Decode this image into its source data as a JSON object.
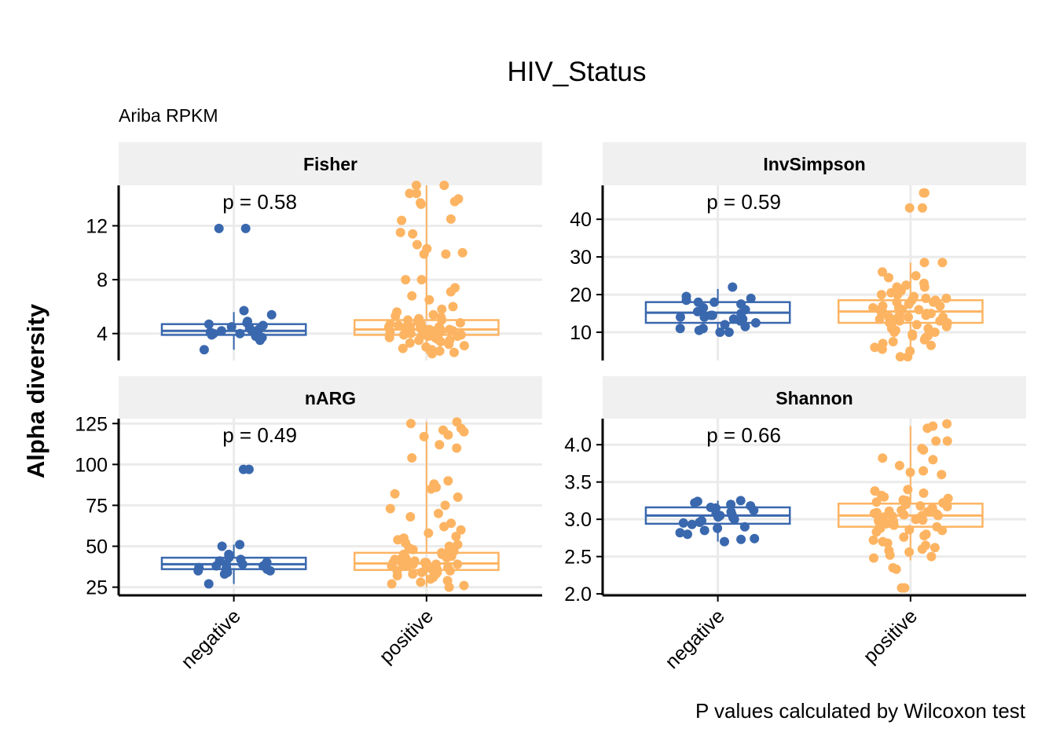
{
  "chart": {
    "title": "HIV_Status",
    "subtitle": "Ariba RPKM",
    "y_axis_label": "Alpha diversity",
    "caption": "P values calculated by Wilcoxon test",
    "colors": {
      "negative": "#3A68AE",
      "positive": "#FDB462",
      "strip_bg": "#F0F0F0",
      "grid": "#EBEBEB"
    }
  },
  "chart_data": [
    {
      "type": "box",
      "panel": "Fisher",
      "p_label": "p = 0.58",
      "categories": [
        "negative",
        "positive"
      ],
      "ylim": [
        2.0,
        15.0
      ],
      "yticks": [
        4,
        8,
        12
      ],
      "ytick_labels": [
        "4",
        "8",
        "12"
      ],
      "boxes": [
        {
          "group": "negative",
          "q1": 3.9,
          "median": 4.2,
          "q3": 4.7,
          "whisker_low": 2.8,
          "whisker_high": 5.6
        },
        {
          "group": "positive",
          "q1": 3.9,
          "median": 4.3,
          "q3": 5.0,
          "whisker_low": 2.5,
          "whisker_high": 15.0
        }
      ],
      "points": [
        {
          "group": "negative",
          "values": [
            11.8,
            11.8,
            5.7,
            5.4,
            4.9,
            4.8,
            4.7,
            4.6,
            4.4,
            4.3,
            4.2,
            4.2,
            4.1,
            4.1,
            4.0,
            4.0,
            3.9,
            3.8,
            3.7,
            3.5,
            2.8,
            4.5
          ]
        },
        {
          "group": "positive",
          "values": [
            15.0,
            15.0,
            14.4,
            14.4,
            14.0,
            13.8,
            13.7,
            13.6,
            12.5,
            12.4,
            11.5,
            11.4,
            10.6,
            10.3,
            10.0,
            9.9,
            9.9,
            8.0,
            8.0,
            7.4,
            7.1,
            6.8,
            6.5,
            6.0,
            5.8,
            5.6,
            5.4,
            5.3,
            5.2,
            5.1,
            5.0,
            5.0,
            4.9,
            4.9,
            4.8,
            4.8,
            4.7,
            4.7,
            4.6,
            4.6,
            4.5,
            4.5,
            4.5,
            4.4,
            4.4,
            4.4,
            4.3,
            4.3,
            4.3,
            4.2,
            4.2,
            4.2,
            4.1,
            4.1,
            4.1,
            4.0,
            4.0,
            4.0,
            3.9,
            3.9,
            3.9,
            3.8,
            3.8,
            3.7,
            3.7,
            3.6,
            3.6,
            3.5,
            3.5,
            3.4,
            3.3,
            3.2,
            3.1,
            3.0,
            2.9,
            2.8,
            2.7,
            2.6,
            2.5
          ]
        }
      ]
    },
    {
      "type": "box",
      "panel": "InvSimpson",
      "p_label": "p = 0.59",
      "categories": [
        "negative",
        "positive"
      ],
      "ylim": [
        2.5,
        49.0
      ],
      "yticks": [
        10,
        20,
        30,
        40
      ],
      "ytick_labels": [
        "10",
        "20",
        "30",
        "40"
      ],
      "boxes": [
        {
          "group": "negative",
          "q1": 12.5,
          "median": 15.2,
          "q3": 18.0,
          "whisker_low": 10.0,
          "whisker_high": 21.5
        },
        {
          "group": "positive",
          "q1": 12.5,
          "median": 15.5,
          "q3": 18.5,
          "whisker_low": 3.5,
          "whisker_high": 28.5
        }
      ],
      "points": [
        {
          "group": "negative",
          "values": [
            22.0,
            19.5,
            19.0,
            18.5,
            18.0,
            18.0,
            17.5,
            16.5,
            16.0,
            15.5,
            15.0,
            14.5,
            14.5,
            14.0,
            14.0,
            13.5,
            13.5,
            13.0,
            12.5,
            12.0,
            11.5,
            11.0,
            11.0,
            10.5,
            10.0,
            10.0
          ]
        },
        {
          "group": "positive",
          "values": [
            47.0,
            47.0,
            43.0,
            43.0,
            28.5,
            28.5,
            26.0,
            25.0,
            24.5,
            23.0,
            22.5,
            22.0,
            22.0,
            21.5,
            21.0,
            20.5,
            20.0,
            20.0,
            19.5,
            19.0,
            19.0,
            18.5,
            18.5,
            18.0,
            18.0,
            17.5,
            17.5,
            17.0,
            17.0,
            16.5,
            16.5,
            16.0,
            16.0,
            16.0,
            15.5,
            15.5,
            15.0,
            15.0,
            15.0,
            14.5,
            14.5,
            14.0,
            14.0,
            14.0,
            13.5,
            13.5,
            13.0,
            13.0,
            12.5,
            12.5,
            12.0,
            12.0,
            11.5,
            11.0,
            11.0,
            10.5,
            10.0,
            10.0,
            9.5,
            9.0,
            9.0,
            8.5,
            8.0,
            7.5,
            7.0,
            6.5,
            6.0,
            5.5,
            5.0,
            3.5,
            3.5
          ]
        }
      ]
    },
    {
      "type": "box",
      "panel": "nARG",
      "p_label": "p = 0.49",
      "categories": [
        "negative",
        "positive"
      ],
      "ylim": [
        20,
        128
      ],
      "yticks": [
        25,
        50,
        75,
        100,
        125
      ],
      "ytick_labels": [
        "25",
        "50",
        "75",
        "100",
        "125"
      ],
      "boxes": [
        {
          "group": "negative",
          "q1": 36.0,
          "median": 39.0,
          "q3": 43.0,
          "whisker_low": 27.0,
          "whisker_high": 51.0
        },
        {
          "group": "positive",
          "q1": 35.5,
          "median": 39.5,
          "q3": 46.0,
          "whisker_low": 25.0,
          "whisker_high": 126.0
        }
      ],
      "points": [
        {
          "group": "negative",
          "values": [
            97.0,
            97.0,
            51.0,
            50.0,
            45.0,
            43.0,
            42.0,
            41.0,
            40.0,
            40.0,
            39.0,
            39.0,
            38.0,
            38.0,
            37.0,
            37.0,
            36.0,
            36.0,
            35.0,
            35.0,
            34.0,
            33.0,
            27.0
          ]
        },
        {
          "group": "positive",
          "values": [
            126.0,
            125.0,
            122.0,
            121.0,
            120.0,
            118.0,
            117.0,
            112.0,
            110.0,
            104.0,
            90.0,
            88.0,
            86.0,
            85.0,
            82.0,
            80.0,
            75.0,
            73.0,
            70.0,
            68.0,
            64.0,
            62.0,
            60.0,
            58.0,
            56.0,
            55.0,
            54.0,
            52.0,
            51.0,
            50.0,
            49.0,
            48.0,
            47.0,
            46.0,
            46.0,
            45.0,
            45.0,
            44.0,
            44.0,
            43.0,
            43.0,
            42.0,
            42.0,
            41.0,
            41.0,
            40.0,
            40.0,
            40.0,
            39.0,
            39.0,
            39.0,
            38.0,
            38.0,
            38.0,
            37.0,
            37.0,
            36.0,
            36.0,
            35.0,
            35.0,
            34.0,
            34.0,
            33.0,
            33.0,
            32.0,
            31.0,
            30.0,
            29.0,
            28.0,
            27.0,
            26.0,
            25.0
          ]
        }
      ]
    },
    {
      "type": "box",
      "panel": "Shannon",
      "p_label": "p = 0.66",
      "categories": [
        "negative",
        "positive"
      ],
      "ylim": [
        1.98,
        4.35
      ],
      "yticks": [
        2.0,
        2.5,
        3.0,
        3.5,
        4.0
      ],
      "ytick_labels": [
        "2.0",
        "2.5",
        "3.0",
        "3.5",
        "4.0"
      ],
      "boxes": [
        {
          "group": "negative",
          "q1": 2.94,
          "median": 3.05,
          "q3": 3.16,
          "whisker_low": 2.7,
          "whisker_high": 3.25
        },
        {
          "group": "positive",
          "q1": 2.9,
          "median": 3.05,
          "q3": 3.21,
          "whisker_low": 2.45,
          "whisker_high": 4.25
        }
      ],
      "points": [
        {
          "group": "negative",
          "values": [
            3.25,
            3.24,
            3.22,
            3.2,
            3.18,
            3.16,
            3.15,
            3.12,
            3.1,
            3.08,
            3.06,
            3.05,
            3.03,
            3.02,
            3.0,
            2.98,
            2.96,
            2.95,
            2.93,
            2.9,
            2.88,
            2.85,
            2.82,
            2.8,
            2.74,
            2.73,
            2.7
          ]
        },
        {
          "group": "positive",
          "values": [
            4.28,
            4.25,
            4.22,
            4.05,
            4.05,
            3.95,
            3.93,
            3.82,
            3.8,
            3.72,
            3.65,
            3.63,
            3.6,
            3.4,
            3.38,
            3.35,
            3.32,
            3.3,
            3.28,
            3.26,
            3.25,
            3.23,
            3.22,
            3.2,
            3.18,
            3.17,
            3.15,
            3.14,
            3.12,
            3.11,
            3.1,
            3.09,
            3.08,
            3.07,
            3.06,
            3.05,
            3.05,
            3.04,
            3.03,
            3.02,
            3.01,
            3.0,
            2.99,
            2.98,
            2.97,
            2.96,
            2.95,
            2.94,
            2.93,
            2.92,
            2.9,
            2.88,
            2.86,
            2.85,
            2.83,
            2.8,
            2.78,
            2.76,
            2.72,
            2.7,
            2.68,
            2.65,
            2.62,
            2.6,
            2.58,
            2.56,
            2.52,
            2.5,
            2.48,
            2.35,
            2.33,
            2.08,
            2.08
          ]
        }
      ]
    }
  ]
}
